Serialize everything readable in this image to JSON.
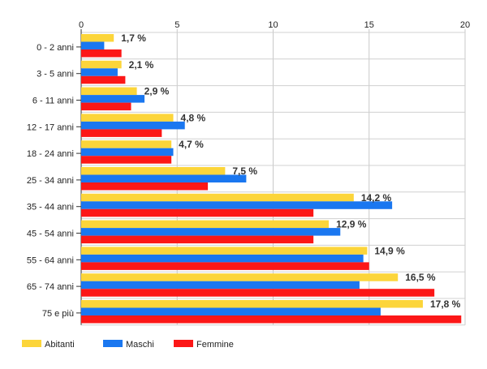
{
  "chart_data": {
    "type": "bar",
    "orientation": "horizontal",
    "categories": [
      "0 - 2 anni",
      "3 - 5 anni",
      "6 - 11 anni",
      "12 - 17 anni",
      "18 - 24 anni",
      "25 - 34 anni",
      "35 - 44 anni",
      "45 - 54 anni",
      "55 - 64 anni",
      "65 - 74 anni",
      "75 e più"
    ],
    "series": [
      {
        "name": "Abitanti",
        "color": "#fcd53a",
        "values": [
          1.7,
          2.1,
          2.9,
          4.8,
          4.7,
          7.5,
          14.2,
          12.9,
          14.9,
          16.5,
          17.8
        ]
      },
      {
        "name": "Maschi",
        "color": "#1a77f0",
        "values": [
          1.2,
          1.9,
          3.3,
          5.4,
          4.8,
          8.6,
          16.2,
          13.5,
          14.7,
          14.5,
          15.6
        ]
      },
      {
        "name": "Femmine",
        "color": "#fc1717",
        "values": [
          2.1,
          2.3,
          2.6,
          4.2,
          4.7,
          6.6,
          12.1,
          12.1,
          15.0,
          18.4,
          19.8
        ]
      }
    ],
    "data_labels": [
      "1,7 %",
      "2,1 %",
      "2,9 %",
      "4,8 %",
      "4,7 %",
      "7,5 %",
      "14,2 %",
      "12,9 %",
      "14,9 %",
      "16,5 %",
      "17,8 %"
    ],
    "xticks": [
      0,
      5,
      10,
      15,
      20
    ],
    "xlim": [
      0,
      20
    ],
    "grid": true,
    "legend": "bottom-left"
  }
}
